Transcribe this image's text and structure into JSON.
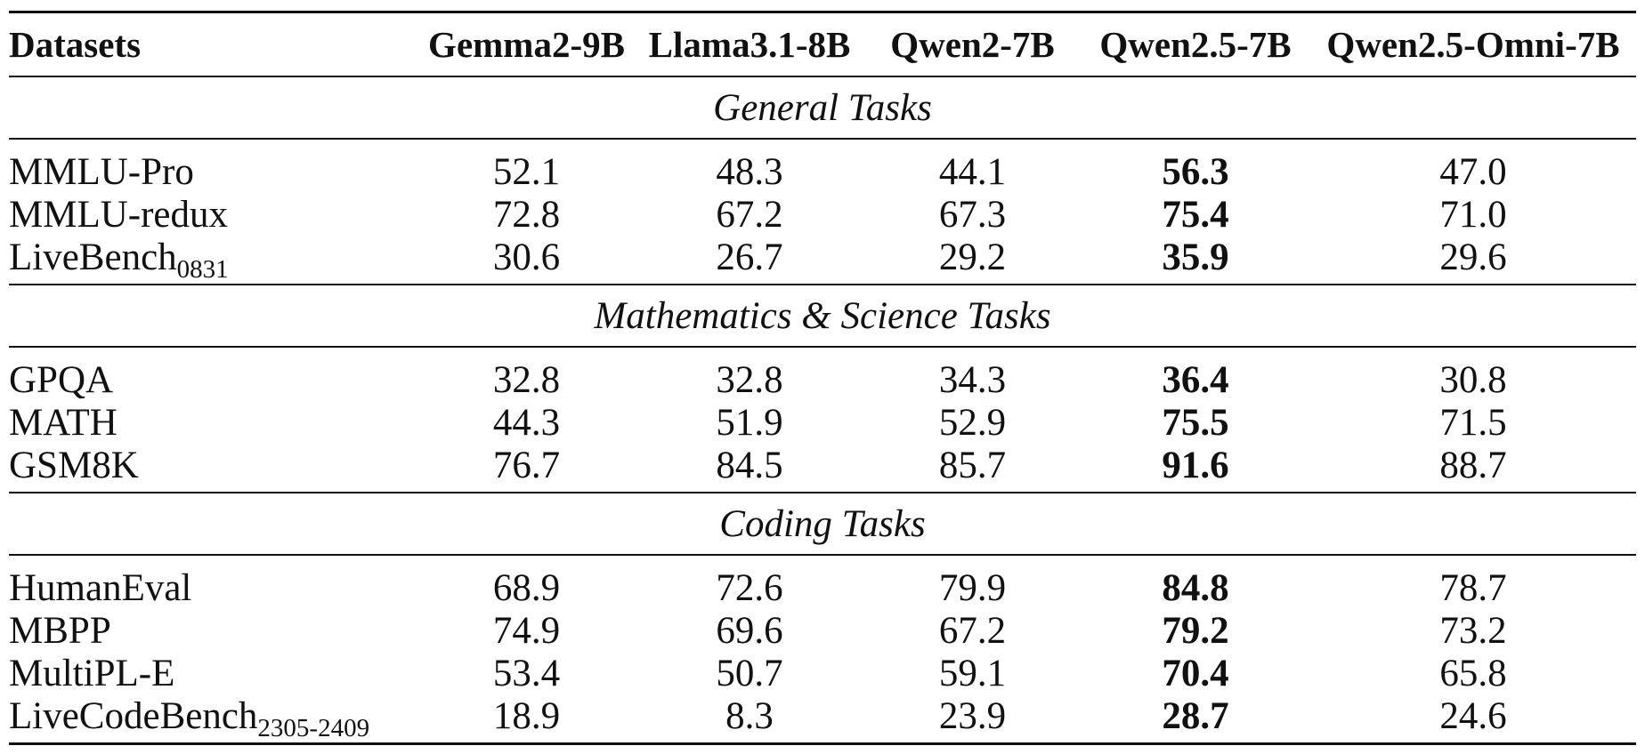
{
  "table": {
    "header": {
      "datasets": "Datasets",
      "models": [
        "Gemma2-9B",
        "Llama3.1-8B",
        "Qwen2-7B",
        "Qwen2.5-7B",
        "Qwen2.5-Omni-7B"
      ]
    },
    "sections": [
      {
        "title": "General Tasks",
        "rows": [
          {
            "name": "MMLU-Pro",
            "sub": "",
            "values": [
              "52.1",
              "48.3",
              "44.1",
              "56.3",
              "47.0"
            ],
            "best_index": 3
          },
          {
            "name": "MMLU-redux",
            "sub": "",
            "values": [
              "72.8",
              "67.2",
              "67.3",
              "75.4",
              "71.0"
            ],
            "best_index": 3
          },
          {
            "name": "LiveBench",
            "sub": "0831",
            "values": [
              "30.6",
              "26.7",
              "29.2",
              "35.9",
              "29.6"
            ],
            "best_index": 3
          }
        ]
      },
      {
        "title": "Mathematics & Science Tasks",
        "rows": [
          {
            "name": "GPQA",
            "sub": "",
            "values": [
              "32.8",
              "32.8",
              "34.3",
              "36.4",
              "30.8"
            ],
            "best_index": 3
          },
          {
            "name": "MATH",
            "sub": "",
            "values": [
              "44.3",
              "51.9",
              "52.9",
              "75.5",
              "71.5"
            ],
            "best_index": 3
          },
          {
            "name": "GSM8K",
            "sub": "",
            "values": [
              "76.7",
              "84.5",
              "85.7",
              "91.6",
              "88.7"
            ],
            "best_index": 3
          }
        ]
      },
      {
        "title": "Coding Tasks",
        "rows": [
          {
            "name": "HumanEval",
            "sub": "",
            "values": [
              "68.9",
              "72.6",
              "79.9",
              "84.8",
              "78.7"
            ],
            "best_index": 3
          },
          {
            "name": "MBPP",
            "sub": "",
            "values": [
              "74.9",
              "69.6",
              "67.2",
              "79.2",
              "73.2"
            ],
            "best_index": 3
          },
          {
            "name": "MultiPL-E",
            "sub": "",
            "values": [
              "53.4",
              "50.7",
              "59.1",
              "70.4",
              "65.8"
            ],
            "best_index": 3
          },
          {
            "name": "LiveCodeBench",
            "sub": "2305-2409",
            "values": [
              "18.9",
              "8.3",
              "23.9",
              "28.7",
              "24.6"
            ],
            "best_index": 3
          }
        ]
      }
    ]
  }
}
